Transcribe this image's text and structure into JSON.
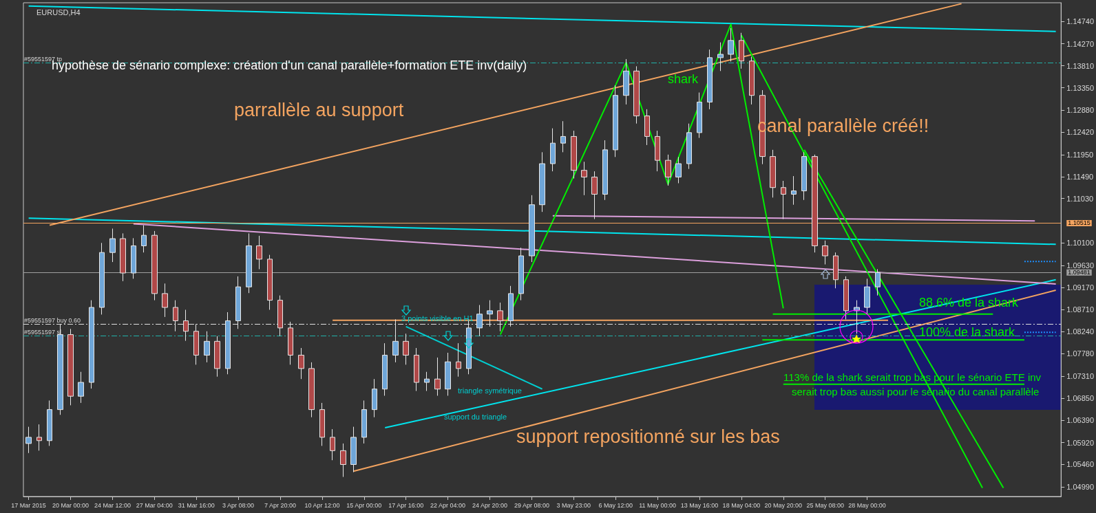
{
  "chart_data": {
    "type": "candlestick",
    "title": "EURUSD,H4",
    "categories": [
      "17 Mar 2015",
      null,
      null,
      null,
      "20 Mar 00:00",
      null,
      null,
      null,
      "24 Mar 12:00",
      null,
      null,
      null,
      "27 Mar 04:00",
      null,
      null,
      null,
      "31 Mar 16:00",
      null,
      null,
      null,
      "3 Apr 08:00",
      null,
      null,
      null,
      "7 Apr 20:00",
      null,
      null,
      null,
      "10 Apr 12:00",
      null,
      null,
      null,
      "15 Apr 00:00",
      null,
      null,
      null,
      "17 Apr 16:00",
      null,
      null,
      null,
      "22 Apr 04:00",
      null,
      null,
      null,
      "24 Apr 20:00",
      null,
      null,
      null,
      "29 Apr 08:00",
      null,
      null,
      null,
      "3 May 23:00",
      null,
      null,
      null,
      "6 May 12:00",
      null,
      null,
      null,
      "11 May 00:00",
      null,
      null,
      null,
      "13 May 16:00",
      null,
      null,
      null,
      "18 May 04:00",
      null,
      null,
      null,
      "20 May 20:00",
      null,
      null,
      null,
      "25 May 08:00",
      null,
      null,
      null,
      "28 May 00:00",
      null,
      null,
      null,
      null,
      null,
      null,
      null,
      null,
      null,
      null,
      null,
      null,
      null,
      null,
      null,
      null,
      null,
      null
    ],
    "ohlc": [
      [
        1.059,
        1.0625,
        1.057,
        1.0603
      ],
      [
        1.0603,
        1.063,
        1.0575,
        1.0596
      ],
      [
        1.0596,
        1.068,
        1.0585,
        1.0661
      ],
      [
        1.0661,
        1.084,
        1.065,
        1.0818
      ],
      [
        1.0818,
        1.083,
        1.067,
        1.0689
      ],
      [
        1.0689,
        1.074,
        1.0675,
        1.0718
      ],
      [
        1.0718,
        1.089,
        1.0705,
        1.0875
      ],
      [
        1.0875,
        1.101,
        1.086,
        1.099
      ],
      [
        1.099,
        1.104,
        1.097,
        1.1019
      ],
      [
        1.1019,
        1.103,
        1.093,
        1.0947
      ],
      [
        1.0947,
        1.102,
        1.0935,
        1.1004
      ],
      [
        1.1004,
        1.1047,
        1.099,
        1.1026
      ],
      [
        1.1026,
        1.1035,
        1.089,
        1.0904
      ],
      [
        1.0904,
        1.0925,
        1.0855,
        1.0875
      ],
      [
        1.0875,
        1.089,
        1.0825,
        1.0847
      ],
      [
        1.0847,
        1.087,
        1.0805,
        1.0825
      ],
      [
        1.0825,
        1.084,
        1.0755,
        1.0775
      ],
      [
        1.0775,
        1.0825,
        1.076,
        1.0804
      ],
      [
        1.0804,
        1.0815,
        1.073,
        1.0747
      ],
      [
        1.0747,
        1.0865,
        1.0735,
        1.0847
      ],
      [
        1.0847,
        1.094,
        1.083,
        1.0918
      ],
      [
        1.0918,
        1.103,
        1.0905,
        1.1004
      ],
      [
        1.1004,
        1.1025,
        1.0955,
        1.0976
      ],
      [
        1.0976,
        1.0985,
        1.087,
        1.089
      ],
      [
        1.089,
        1.09,
        1.0815,
        1.0832
      ],
      [
        1.0832,
        1.0845,
        1.0755,
        1.0775
      ],
      [
        1.0775,
        1.079,
        1.0725,
        1.0747
      ],
      [
        1.0747,
        1.076,
        1.0645,
        1.0661
      ],
      [
        1.0661,
        1.0675,
        1.0585,
        1.0603
      ],
      [
        1.0603,
        1.062,
        1.0555,
        1.0575
      ],
      [
        1.0575,
        1.059,
        1.052,
        1.0546
      ],
      [
        1.0546,
        1.0625,
        1.053,
        1.0603
      ],
      [
        1.0603,
        1.068,
        1.059,
        1.0661
      ],
      [
        1.0661,
        1.0725,
        1.0645,
        1.0704
      ],
      [
        1.0704,
        1.08,
        1.069,
        1.0775
      ],
      [
        1.0775,
        1.085,
        1.076,
        1.0804
      ],
      [
        1.0804,
        1.082,
        1.0755,
        1.0775
      ],
      [
        1.0775,
        1.079,
        1.07,
        1.0718
      ],
      [
        1.0718,
        1.074,
        1.07,
        1.0725
      ],
      [
        1.0725,
        1.077,
        1.069,
        1.0704
      ],
      [
        1.0704,
        1.078,
        1.069,
        1.0761
      ],
      [
        1.0761,
        1.08,
        1.073,
        1.0747
      ],
      [
        1.0747,
        1.085,
        1.0735,
        1.0832
      ],
      [
        1.0832,
        1.088,
        1.0815,
        1.0861
      ],
      [
        1.0861,
        1.089,
        1.0835,
        1.0868
      ],
      [
        1.0868,
        1.0885,
        1.0825,
        1.0847
      ],
      [
        1.0847,
        1.092,
        1.0835,
        1.0904
      ],
      [
        1.0904,
        1.1,
        1.089,
        1.0983
      ],
      [
        1.0983,
        1.111,
        1.097,
        1.109
      ],
      [
        1.109,
        1.12,
        1.1075,
        1.1176
      ],
      [
        1.1176,
        1.125,
        1.116,
        1.1219
      ],
      [
        1.1219,
        1.1265,
        1.12,
        1.1233
      ],
      [
        1.1233,
        1.1245,
        1.1145,
        1.1162
      ],
      [
        1.1162,
        1.118,
        1.111,
        1.1148
      ],
      [
        1.1148,
        1.116,
        1.106,
        1.1112
      ],
      [
        1.1112,
        1.1225,
        1.11,
        1.1205
      ],
      [
        1.1205,
        1.134,
        1.119,
        1.1319
      ],
      [
        1.1319,
        1.1395,
        1.13,
        1.137
      ],
      [
        1.137,
        1.138,
        1.126,
        1.1276
      ],
      [
        1.1276,
        1.129,
        1.1215,
        1.1233
      ],
      [
        1.1233,
        1.1245,
        1.116,
        1.1183
      ],
      [
        1.1183,
        1.1195,
        1.113,
        1.1148
      ],
      [
        1.1148,
        1.119,
        1.1135,
        1.1176
      ],
      [
        1.1176,
        1.126,
        1.1165,
        1.1241
      ],
      [
        1.1241,
        1.1325,
        1.123,
        1.1305
      ],
      [
        1.1305,
        1.1415,
        1.129,
        1.1398
      ],
      [
        1.1398,
        1.143,
        1.137,
        1.1405
      ],
      [
        1.1405,
        1.146,
        1.139,
        1.1434
      ],
      [
        1.1434,
        1.145,
        1.1375,
        1.1391
      ],
      [
        1.1391,
        1.14,
        1.13,
        1.1319
      ],
      [
        1.1319,
        1.133,
        1.1175,
        1.1191
      ],
      [
        1.1191,
        1.1205,
        1.1105,
        1.1126
      ],
      [
        1.1126,
        1.114,
        1.106,
        1.1112
      ],
      [
        1.1112,
        1.115,
        1.109,
        1.1119
      ],
      [
        1.1119,
        1.12,
        1.11,
        1.1191
      ],
      [
        1.1191,
        1.1195,
        1.099,
        1.1004
      ],
      [
        1.1004,
        1.1015,
        1.0965,
        1.0983
      ],
      [
        1.0983,
        1.099,
        1.0915,
        1.0933
      ],
      [
        1.0933,
        1.094,
        1.085,
        1.0868
      ],
      [
        1.0868,
        1.089,
        1.082,
        1.0875
      ],
      [
        1.0875,
        1.0935,
        1.086,
        1.0918
      ],
      [
        1.0918,
        1.0955,
        1.09,
        1.0948
      ],
      null,
      null,
      null,
      null,
      null,
      null,
      null,
      null,
      null,
      null,
      null,
      null,
      null,
      null,
      null,
      null,
      null
    ],
    "series": [
      {
        "type": "line",
        "color": "#00e5ee",
        "values": [
          1.1506,
          null,
          null,
          null,
          null,
          null,
          null,
          null,
          null,
          null,
          null,
          null,
          null,
          null,
          null,
          null,
          null,
          null,
          null,
          null,
          null,
          null,
          null,
          null,
          null,
          null,
          null,
          null,
          null,
          null,
          null,
          null,
          null,
          null,
          null,
          null,
          null,
          null,
          null,
          null,
          null,
          null,
          null,
          null,
          null,
          null,
          null,
          null,
          null,
          null,
          null,
          null,
          null,
          null,
          null,
          null,
          null,
          null,
          null,
          null,
          null,
          null,
          null,
          null,
          null,
          null,
          null,
          null,
          null,
          null,
          null,
          null,
          null,
          null,
          null,
          null,
          null,
          null,
          null,
          null,
          null,
          null,
          null,
          null,
          null,
          null,
          null,
          null,
          null,
          null,
          null,
          null,
          null,
          null,
          null,
          null,
          null,
          null,
          1.1453
        ]
      },
      {
        "type": "line",
        "color": "#00e5ee",
        "values": [
          1.1062,
          null,
          null,
          null,
          null,
          null,
          null,
          null,
          null,
          null,
          null,
          null,
          null,
          null,
          null,
          null,
          null,
          null,
          null,
          null,
          null,
          null,
          null,
          null,
          null,
          null,
          null,
          null,
          null,
          null,
          null,
          null,
          null,
          null,
          null,
          null,
          null,
          null,
          null,
          null,
          null,
          null,
          null,
          null,
          null,
          null,
          null,
          null,
          null,
          null,
          null,
          null,
          null,
          null,
          null,
          null,
          null,
          null,
          null,
          null,
          null,
          null,
          null,
          null,
          null,
          null,
          null,
          null,
          null,
          null,
          null,
          null,
          null,
          null,
          null,
          null,
          null,
          null,
          null,
          null,
          null,
          null,
          null,
          null,
          null,
          null,
          null,
          null,
          null,
          null,
          null,
          null,
          null,
          null,
          null,
          null,
          null,
          null,
          1.1007
        ]
      },
      {
        "type": "line",
        "color": "#00e5ee",
        "values": [
          null,
          null,
          null,
          null,
          null,
          null,
          null,
          null,
          null,
          null,
          null,
          null,
          null,
          null,
          null,
          null,
          null,
          null,
          null,
          null,
          null,
          null,
          null,
          null,
          null,
          null,
          null,
          null,
          null,
          null,
          null,
          null,
          null,
          null,
          1.0623,
          null,
          null,
          null,
          null,
          null,
          null,
          null,
          null,
          null,
          null,
          null,
          null,
          null,
          null,
          null,
          null,
          null,
          null,
          null,
          null,
          null,
          null,
          null,
          null,
          null,
          null,
          null,
          null,
          null,
          null,
          null,
          null,
          null,
          null,
          null,
          null,
          null,
          null,
          null,
          null,
          null,
          null,
          null,
          null,
          null,
          null,
          null,
          null,
          null,
          null,
          null,
          null,
          null,
          null,
          null,
          null,
          null,
          null,
          null,
          null,
          null,
          null,
          null,
          1.0933
        ]
      },
      {
        "type": "line",
        "color": "#f4a460",
        "values": [
          null,
          null,
          1.1047,
          null,
          null,
          null,
          null,
          null,
          null,
          null,
          null,
          null,
          null,
          null,
          null,
          null,
          null,
          null,
          null,
          null,
          null,
          null,
          null,
          null,
          null,
          null,
          null,
          null,
          null,
          null,
          null,
          null,
          null,
          null,
          null,
          null,
          null,
          null,
          null,
          null,
          null,
          null,
          null,
          null,
          null,
          null,
          null,
          null,
          null,
          null,
          null,
          null,
          null,
          null,
          null,
          null,
          null,
          null,
          null,
          null,
          null,
          null,
          null,
          null,
          null,
          null,
          null,
          null,
          null,
          null,
          null,
          null,
          null,
          null,
          null,
          null,
          null,
          null,
          null,
          null,
          null,
          null,
          null,
          null,
          null,
          null,
          null,
          null,
          null,
          1.1511,
          null,
          null,
          null,
          null,
          null,
          null,
          null,
          null,
          null
        ]
      },
      {
        "type": "line",
        "color": "#f4a460",
        "values": [
          null,
          null,
          null,
          null,
          null,
          null,
          null,
          null,
          null,
          null,
          null,
          null,
          null,
          null,
          null,
          null,
          null,
          null,
          null,
          null,
          null,
          null,
          null,
          null,
          null,
          null,
          null,
          null,
          null,
          null,
          null,
          1.0532,
          null,
          null,
          null,
          null,
          null,
          null,
          null,
          null,
          null,
          null,
          null,
          null,
          null,
          null,
          null,
          null,
          null,
          null,
          null,
          null,
          null,
          null,
          null,
          null,
          null,
          null,
          null,
          null,
          null,
          null,
          null,
          null,
          null,
          null,
          null,
          null,
          null,
          null,
          null,
          null,
          null,
          null,
          null,
          null,
          null,
          null,
          null,
          null,
          null,
          null,
          null,
          null,
          null,
          null,
          null,
          null,
          null,
          null,
          null,
          null,
          null,
          null,
          null,
          null,
          null,
          null,
          1.0911
        ]
      },
      {
        "type": "line",
        "color": "#dda0dd",
        "values": [
          null,
          null,
          null,
          null,
          null,
          null,
          null,
          null,
          null,
          null,
          1.105,
          null,
          null,
          null,
          null,
          null,
          null,
          null,
          null,
          null,
          null,
          null,
          null,
          null,
          null,
          null,
          null,
          null,
          null,
          null,
          null,
          null,
          null,
          null,
          null,
          null,
          null,
          null,
          null,
          null,
          null,
          null,
          null,
          null,
          null,
          null,
          null,
          null,
          null,
          null,
          null,
          null,
          null,
          null,
          null,
          null,
          null,
          null,
          null,
          null,
          null,
          null,
          null,
          null,
          null,
          null,
          null,
          null,
          null,
          null,
          null,
          null,
          null,
          null,
          null,
          null,
          null,
          null,
          null,
          null,
          null,
          null,
          null,
          null,
          null,
          null,
          null,
          null,
          null,
          null,
          null,
          null,
          null,
          null,
          null,
          null,
          null,
          null,
          1.0924
        ]
      },
      {
        "type": "line",
        "color": "#dda0dd",
        "values": [
          null,
          null,
          null,
          null,
          null,
          null,
          null,
          null,
          null,
          null,
          null,
          null,
          null,
          null,
          null,
          null,
          null,
          null,
          null,
          null,
          null,
          null,
          null,
          null,
          null,
          null,
          null,
          null,
          null,
          null,
          null,
          null,
          null,
          null,
          null,
          null,
          null,
          null,
          null,
          null,
          null,
          null,
          null,
          null,
          null,
          null,
          null,
          null,
          null,
          null,
          1.1067,
          null,
          null,
          null,
          null,
          null,
          null,
          null,
          null,
          null,
          null,
          null,
          null,
          null,
          null,
          null,
          null,
          null,
          null,
          null,
          null,
          null,
          null,
          null,
          null,
          null,
          null,
          null,
          null,
          null,
          null,
          null,
          null,
          null,
          null,
          null,
          null,
          null,
          null,
          null,
          null,
          null,
          null,
          null,
          null,
          null,
          1.1056,
          null,
          null
        ]
      },
      {
        "type": "line",
        "color": "#00ced1",
        "values": [
          null,
          null,
          null,
          null,
          null,
          null,
          null,
          null,
          null,
          null,
          null,
          null,
          null,
          null,
          null,
          null,
          null,
          null,
          null,
          null,
          null,
          null,
          null,
          null,
          null,
          null,
          null,
          null,
          null,
          null,
          null,
          null,
          null,
          null,
          null,
          null,
          1.0835,
          null,
          null,
          null,
          null,
          null,
          null,
          null,
          null,
          null,
          null,
          null,
          null,
          1.0704,
          null,
          null,
          null,
          null,
          null,
          null,
          null,
          null,
          null,
          null,
          null,
          null,
          null,
          null,
          null,
          null,
          null,
          null,
          null,
          null,
          null,
          null,
          null,
          null,
          null,
          null,
          null,
          null,
          null,
          null,
          null,
          null,
          null,
          null,
          null,
          null,
          null,
          null,
          null,
          null,
          null,
          null,
          null,
          null,
          null,
          null,
          null,
          null,
          null
        ]
      },
      {
        "type": "line",
        "color": "#00ee00",
        "values": [
          null,
          null,
          null,
          null,
          null,
          null,
          null,
          null,
          null,
          null,
          null,
          null,
          null,
          null,
          null,
          null,
          null,
          null,
          null,
          null,
          null,
          null,
          null,
          null,
          null,
          null,
          null,
          null,
          null,
          null,
          null,
          null,
          null,
          null,
          null,
          null,
          null,
          null,
          null,
          null,
          null,
          null,
          null,
          null,
          null,
          1.0818,
          null,
          null,
          null,
          null,
          null,
          null,
          null,
          null,
          null,
          null,
          null,
          1.1388,
          null,
          null,
          null,
          1.1133,
          null,
          null,
          null,
          null,
          null,
          1.1468,
          null,
          null,
          null,
          null,
          1.0873,
          null,
          null,
          null,
          null,
          null,
          null,
          null,
          null,
          null,
          null,
          null,
          null,
          null,
          null,
          null,
          null,
          null,
          null,
          null,
          null,
          null,
          null,
          null,
          null,
          null,
          null
        ]
      },
      {
        "type": "line",
        "color": "#00ee00",
        "values": [
          null,
          null,
          null,
          null,
          null,
          null,
          null,
          null,
          null,
          null,
          null,
          null,
          null,
          null,
          null,
          null,
          null,
          null,
          null,
          null,
          null,
          null,
          null,
          null,
          null,
          null,
          null,
          null,
          null,
          null,
          null,
          null,
          null,
          null,
          null,
          null,
          null,
          null,
          null,
          null,
          null,
          null,
          null,
          null,
          null,
          null,
          null,
          null,
          null,
          null,
          null,
          null,
          null,
          null,
          null,
          null,
          null,
          null,
          null,
          null,
          null,
          null,
          null,
          null,
          null,
          null,
          null,
          null,
          null,
          null,
          null,
          1.0861,
          null,
          null,
          null,
          null,
          null,
          null,
          null,
          null,
          null,
          null,
          null,
          null,
          null,
          null,
          null,
          null,
          null,
          null,
          null,
          null,
          1.0861,
          null,
          null,
          null,
          null,
          null,
          null
        ]
      },
      {
        "type": "line",
        "color": "#00ee00",
        "values": [
          null,
          null,
          null,
          null,
          null,
          null,
          null,
          null,
          null,
          null,
          null,
          null,
          null,
          null,
          null,
          null,
          null,
          null,
          null,
          null,
          null,
          null,
          null,
          null,
          null,
          null,
          null,
          null,
          null,
          null,
          null,
          null,
          null,
          null,
          null,
          null,
          null,
          null,
          null,
          null,
          null,
          null,
          null,
          null,
          null,
          null,
          null,
          null,
          null,
          null,
          null,
          null,
          null,
          null,
          null,
          null,
          null,
          null,
          null,
          null,
          null,
          null,
          null,
          null,
          null,
          null,
          null,
          null,
          null,
          null,
          1.0807,
          null,
          null,
          null,
          null,
          null,
          null,
          null,
          null,
          null,
          null,
          null,
          null,
          null,
          null,
          null,
          null,
          null,
          null,
          null,
          null,
          null,
          null,
          null,
          null,
          1.0807,
          null,
          null,
          null
        ]
      },
      {
        "type": "line",
        "color": "#00ee00",
        "values": [
          null,
          null,
          null,
          null,
          null,
          null,
          null,
          null,
          null,
          null,
          null,
          null,
          null,
          null,
          null,
          null,
          null,
          null,
          null,
          null,
          null,
          null,
          null,
          null,
          null,
          null,
          null,
          null,
          null,
          null,
          null,
          null,
          null,
          null,
          null,
          null,
          null,
          null,
          null,
          null,
          null,
          null,
          null,
          null,
          null,
          null,
          null,
          null,
          null,
          null,
          null,
          null,
          null,
          null,
          null,
          null,
          null,
          null,
          null,
          null,
          null,
          null,
          null,
          null,
          null,
          null,
          null,
          null,
          null,
          null,
          null,
          null,
          1.0714,
          null,
          null,
          null,
          null,
          null,
          null,
          null,
          null,
          null,
          null,
          null,
          null,
          null,
          null,
          null,
          null,
          null,
          null,
          null,
          null,
          null,
          null,
          1.0714,
          null,
          null,
          null
        ]
      },
      {
        "type": "line",
        "color": "#00ee00",
        "values": [
          null,
          null,
          null,
          null,
          null,
          null,
          null,
          null,
          null,
          null,
          null,
          null,
          null,
          null,
          null,
          null,
          null,
          null,
          null,
          null,
          null,
          null,
          null,
          null,
          null,
          null,
          null,
          null,
          null,
          null,
          null,
          null,
          null,
          null,
          null,
          null,
          null,
          null,
          null,
          null,
          null,
          null,
          null,
          null,
          null,
          null,
          null,
          null,
          null,
          null,
          null,
          null,
          null,
          null,
          null,
          null,
          null,
          null,
          null,
          null,
          null,
          null,
          null,
          null,
          null,
          null,
          null,
          null,
          1.1445,
          null,
          null,
          null,
          null,
          null,
          null,
          null,
          null,
          null,
          null,
          null,
          null,
          null,
          null,
          null,
          null,
          null,
          null,
          null,
          null,
          null,
          null,
          1.0497,
          null,
          null,
          null,
          null,
          null,
          null,
          null
        ]
      },
      {
        "type": "line",
        "color": "#00ee00",
        "values": [
          null,
          null,
          null,
          null,
          null,
          null,
          null,
          null,
          null,
          null,
          null,
          null,
          null,
          null,
          null,
          null,
          null,
          null,
          null,
          null,
          null,
          null,
          null,
          null,
          null,
          null,
          null,
          null,
          null,
          null,
          null,
          null,
          null,
          null,
          null,
          null,
          null,
          null,
          null,
          null,
          null,
          null,
          null,
          null,
          null,
          null,
          null,
          null,
          null,
          null,
          null,
          null,
          null,
          null,
          null,
          null,
          null,
          null,
          null,
          null,
          null,
          null,
          null,
          null,
          null,
          null,
          null,
          null,
          null,
          null,
          null,
          null,
          null,
          null,
          1.1205,
          null,
          null,
          null,
          null,
          null,
          null,
          null,
          null,
          null,
          null,
          null,
          null,
          null,
          null,
          null,
          null,
          null,
          null,
          1.0497,
          null,
          null,
          null,
          null,
          null
        ]
      },
      {
        "type": "line",
        "color": "#f4a460",
        "values": [
          null,
          null,
          null,
          null,
          null,
          null,
          null,
          null,
          null,
          null,
          null,
          null,
          null,
          null,
          null,
          null,
          null,
          null,
          null,
          null,
          null,
          null,
          null,
          null,
          null,
          null,
          null,
          null,
          null,
          1.0848,
          null,
          null,
          null,
          null,
          null,
          null,
          null,
          null,
          null,
          null,
          null,
          null,
          null,
          null,
          null,
          null,
          null,
          null,
          null,
          null,
          null,
          null,
          null,
          null,
          null,
          null,
          null,
          null,
          null,
          null,
          null,
          null,
          null,
          null,
          null,
          null,
          null,
          null,
          null,
          null,
          null,
          null,
          null,
          null,
          null,
          null,
          null,
          null,
          null,
          null,
          null,
          null,
          1.0848,
          null,
          null,
          null,
          null,
          null,
          null,
          null,
          null,
          null,
          null,
          null,
          null,
          null,
          null,
          null,
          null
        ]
      },
      {
        "type": "line",
        "color": "#1e90ff",
        "line_style": "dotted",
        "values": [
          null,
          null,
          null,
          null,
          null,
          null,
          null,
          null,
          null,
          null,
          null,
          null,
          null,
          null,
          null,
          null,
          null,
          null,
          null,
          null,
          null,
          null,
          null,
          null,
          null,
          null,
          null,
          null,
          null,
          null,
          null,
          null,
          null,
          null,
          null,
          null,
          null,
          null,
          null,
          null,
          null,
          null,
          null,
          null,
          null,
          null,
          null,
          null,
          null,
          null,
          null,
          null,
          null,
          null,
          null,
          null,
          null,
          null,
          null,
          null,
          null,
          null,
          null,
          null,
          null,
          null,
          null,
          null,
          null,
          null,
          null,
          null,
          null,
          null,
          null,
          null,
          null,
          null,
          null,
          null,
          null,
          null,
          null,
          null,
          null,
          null,
          null,
          null,
          null,
          null,
          null,
          null,
          null,
          null,
          null,
          1.0971,
          null,
          null,
          1.0971
        ]
      },
      {
        "type": "line",
        "color": "#1e90ff",
        "line_style": "dotted",
        "values": [
          null,
          null,
          null,
          null,
          null,
          null,
          null,
          null,
          null,
          null,
          null,
          null,
          null,
          null,
          null,
          null,
          null,
          null,
          null,
          null,
          null,
          null,
          null,
          null,
          null,
          null,
          null,
          null,
          null,
          null,
          null,
          null,
          null,
          null,
          null,
          null,
          null,
          null,
          null,
          null,
          null,
          null,
          null,
          null,
          null,
          null,
          null,
          null,
          null,
          null,
          null,
          null,
          null,
          null,
          null,
          null,
          null,
          null,
          null,
          null,
          null,
          null,
          null,
          null,
          null,
          null,
          null,
          null,
          null,
          null,
          null,
          null,
          null,
          null,
          null,
          null,
          null,
          null,
          null,
          null,
          null,
          null,
          null,
          null,
          null,
          null,
          null,
          null,
          null,
          null,
          null,
          null,
          null,
          null,
          null,
          1.0823,
          null,
          null,
          1.0823
        ]
      }
    ],
    "ref_lines": [
      {
        "axis": "y",
        "value": 1.1387,
        "label": "#59551597 tp",
        "color": "#20b2aa",
        "line_style": "dashed"
      },
      {
        "axis": "y",
        "value": 1.084,
        "label": "#59551597 buy 0.60",
        "color": "#e0e0e0",
        "line_style": "dashed"
      },
      {
        "axis": "y",
        "value": 1.0815,
        "label": "#59551597 sl",
        "color": "#20b2aa",
        "line_style": "dashed"
      },
      {
        "axis": "y",
        "value": 1.10515,
        "label": "1.10515",
        "color": "#f4a460",
        "line_style": "solid"
      },
      {
        "axis": "y",
        "value": 1.09481,
        "label": "1.09481",
        "color": "#a0a0a0",
        "line_style": "solid"
      }
    ],
    "annotations": [
      "hypothèse de sénario complexe: création d'un canal parallèle+formation ETE inv(daily)",
      "parrallèle au support",
      "shark",
      "canal parallèle créé!!",
      "88.6% de la shark",
      "100% de la shark",
      "113% de la shark serait trop bas pour le sénario ETE inv",
      "serait trop bas aussi pour le sénario du canal parallèle",
      "3 points visible en H1",
      "triangle symétrique",
      "support du triangle",
      "support repositionné sur les bas"
    ],
    "ylim": [
      1.0479,
      1.1513
    ],
    "yticks": [
      {
        "value": 1.0499,
        "label": "1.04990"
      },
      {
        "value": 1.0546,
        "label": "1.05460"
      },
      {
        "value": 1.0592,
        "label": "1.05920"
      },
      {
        "value": 1.0639,
        "label": "1.06390"
      },
      {
        "value": 1.0685,
        "label": "1.06850"
      },
      {
        "value": 1.0731,
        "label": "1.07310"
      },
      {
        "value": 1.0778,
        "label": "1.07780"
      },
      {
        "value": 1.0824,
        "label": "1.08240"
      },
      {
        "value": 1.0871,
        "label": "1.08710"
      },
      {
        "value": 1.0917,
        "label": "1.09170"
      },
      {
        "value": 1.0963,
        "label": "1.09630"
      },
      {
        "value": 1.101,
        "label": "1.10100"
      },
      {
        "value": 1.1103,
        "label": "1.11030"
      },
      {
        "value": 1.1149,
        "label": "1.11490"
      },
      {
        "value": 1.1195,
        "label": "1.11950"
      },
      {
        "value": 1.1242,
        "label": "1.12420"
      },
      {
        "value": 1.1288,
        "label": "1.12880"
      },
      {
        "value": 1.1335,
        "label": "1.13350"
      },
      {
        "value": 1.1381,
        "label": "1.13810"
      },
      {
        "value": 1.1427,
        "label": "1.14270"
      },
      {
        "value": 1.1474,
        "label": "1.14740"
      }
    ],
    "grid": false
  }
}
